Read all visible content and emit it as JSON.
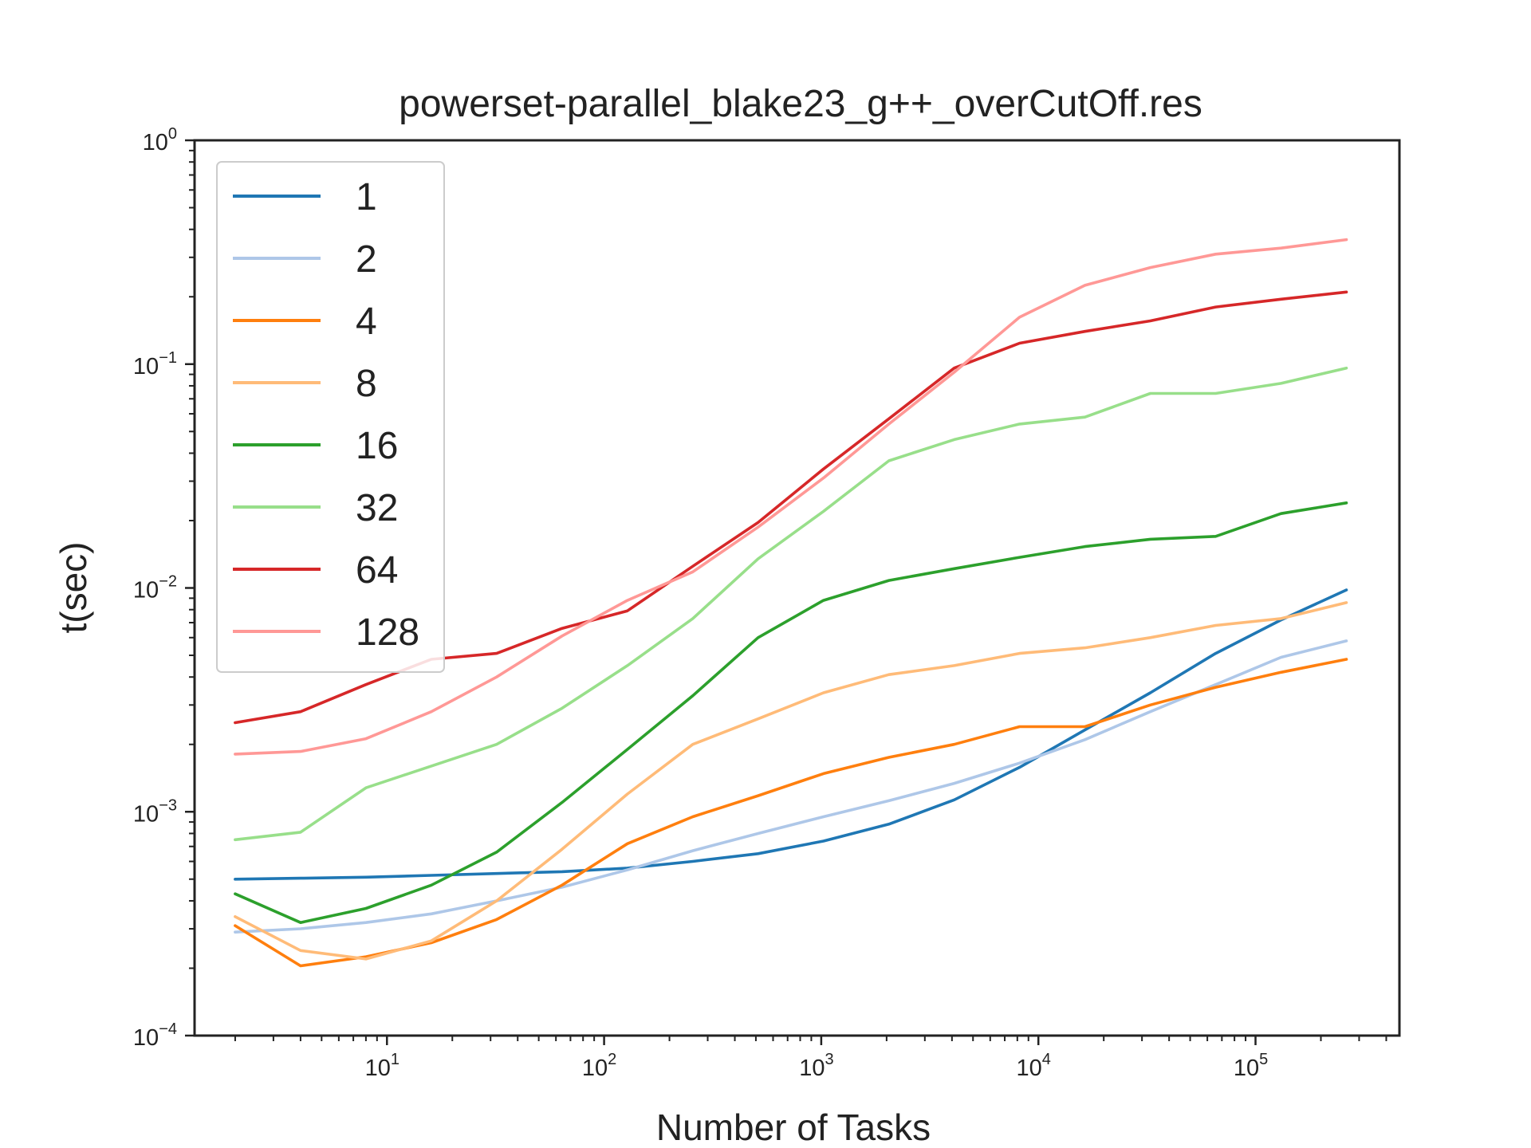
{
  "chart_data": {
    "type": "line",
    "title": "powerset-parallel_blake23_g++_overCutOff.res",
    "xlabel": "Number of Tasks",
    "ylabel": "t(sec)",
    "xscale": "log",
    "yscale": "log",
    "xlim": [
      1.3,
      460000
    ],
    "ylim": [
      0.0001,
      1
    ],
    "x_ticks": [
      {
        "base": "10",
        "exp": "1",
        "value": 10
      },
      {
        "base": "10",
        "exp": "2",
        "value": 100
      },
      {
        "base": "10",
        "exp": "3",
        "value": 1000
      },
      {
        "base": "10",
        "exp": "4",
        "value": 10000
      },
      {
        "base": "10",
        "exp": "5",
        "value": 100000
      }
    ],
    "y_ticks": [
      {
        "base": "10",
        "exp": "0",
        "value": 1
      },
      {
        "base": "10",
        "exp": "−1",
        "value": 0.1
      },
      {
        "base": "10",
        "exp": "−2",
        "value": 0.01
      },
      {
        "base": "10",
        "exp": "−3",
        "value": 0.001
      },
      {
        "base": "10",
        "exp": "−4",
        "value": 0.0001
      }
    ],
    "grid": false,
    "legend_position": "upper-left",
    "x": [
      2,
      4,
      8,
      16,
      32,
      64,
      128,
      256,
      512,
      1024,
      2048,
      4096,
      8192,
      16384,
      32768,
      65536,
      131072,
      262144
    ],
    "series": [
      {
        "name": "1",
        "color": "#1f77b4",
        "values": [
          0.0005,
          0.000505,
          0.00051,
          0.00052,
          0.00053,
          0.00054,
          0.00056,
          0.0006,
          0.00065,
          0.00074,
          0.00088,
          0.00113,
          0.00158,
          0.00232,
          0.0034,
          0.0051,
          0.0072,
          0.0098
        ]
      },
      {
        "name": "2",
        "color": "#aec7e8",
        "values": [
          0.00029,
          0.0003,
          0.00032,
          0.00035,
          0.0004,
          0.00046,
          0.00055,
          0.00067,
          0.0008,
          0.00095,
          0.00112,
          0.00134,
          0.00165,
          0.0021,
          0.0028,
          0.0037,
          0.0049,
          0.0058
        ]
      },
      {
        "name": "4",
        "color": "#ff7f0e",
        "values": [
          0.00031,
          0.000205,
          0.000225,
          0.00026,
          0.00033,
          0.00047,
          0.00072,
          0.00095,
          0.00118,
          0.00148,
          0.00175,
          0.002,
          0.0024,
          0.0024,
          0.003,
          0.0036,
          0.0042,
          0.0048
        ]
      },
      {
        "name": "8",
        "color": "#ffbb78",
        "values": [
          0.00034,
          0.00024,
          0.00022,
          0.000265,
          0.0004,
          0.00068,
          0.0012,
          0.002,
          0.0026,
          0.0034,
          0.0041,
          0.0045,
          0.0051,
          0.0054,
          0.006,
          0.0068,
          0.0073,
          0.0086
        ]
      },
      {
        "name": "16",
        "color": "#2ca02c",
        "values": [
          0.00043,
          0.00032,
          0.00037,
          0.00047,
          0.00066,
          0.0011,
          0.0019,
          0.0033,
          0.006,
          0.0088,
          0.0108,
          0.0122,
          0.0137,
          0.0153,
          0.0165,
          0.017,
          0.0215,
          0.024
        ]
      },
      {
        "name": "32",
        "color": "#98df8a",
        "values": [
          0.00075,
          0.00081,
          0.00128,
          0.0016,
          0.002,
          0.0029,
          0.0045,
          0.0073,
          0.0135,
          0.022,
          0.037,
          0.046,
          0.054,
          0.058,
          0.074,
          0.074,
          0.082,
          0.096
        ]
      },
      {
        "name": "64",
        "color": "#d62728",
        "values": [
          0.0025,
          0.0028,
          0.0037,
          0.0048,
          0.0051,
          0.0066,
          0.0079,
          0.0125,
          0.0196,
          0.034,
          0.057,
          0.096,
          0.124,
          0.14,
          0.156,
          0.18,
          0.195,
          0.21
        ]
      },
      {
        "name": "128",
        "color": "#ff9896",
        "values": [
          0.00181,
          0.00186,
          0.00212,
          0.0028,
          0.004,
          0.0061,
          0.0088,
          0.0118,
          0.0187,
          0.031,
          0.054,
          0.092,
          0.162,
          0.225,
          0.27,
          0.31,
          0.33,
          0.36
        ]
      }
    ]
  }
}
